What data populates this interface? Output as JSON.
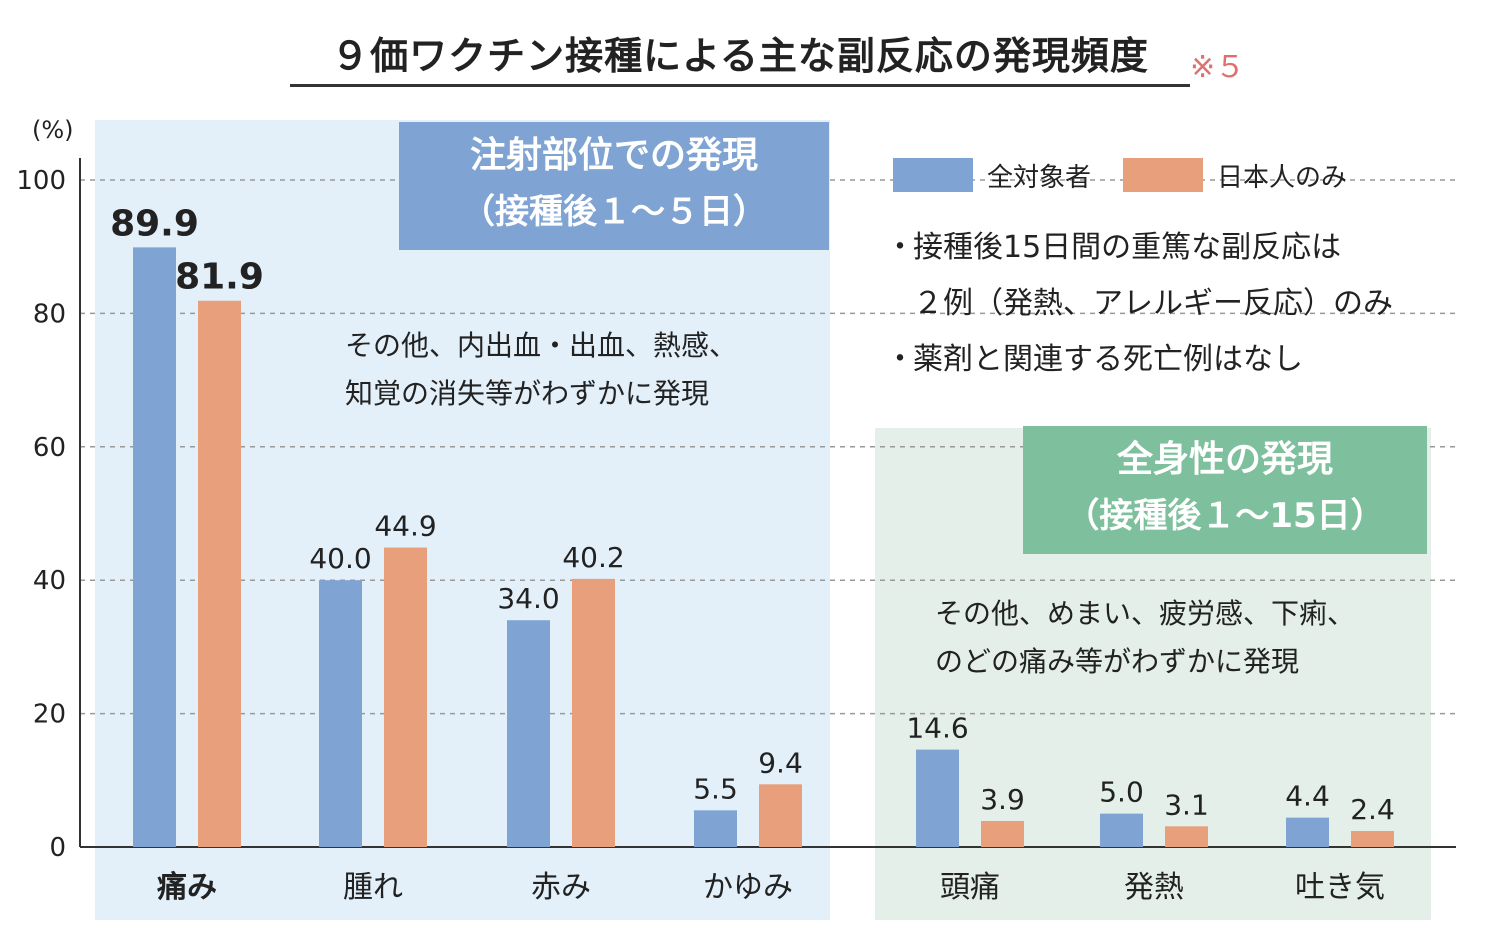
{
  "title": "９価ワクチン接種による主な副反応の発現頻度",
  "title_note": "※５",
  "chart_data": {
    "type": "bar",
    "categories": [
      "痛み",
      "腫れ",
      "赤み",
      "かゆみ",
      "頭痛",
      "発熱",
      "吐き気"
    ],
    "series": [
      {
        "name": "全対象者",
        "color": "#7fa3d3",
        "values": [
          89.9,
          40.0,
          34.0,
          5.5,
          14.6,
          5.0,
          4.4
        ],
        "labels": [
          "89.9",
          "40.0",
          "34.0",
          "5.5",
          "14.6",
          "5.0",
          "4.4"
        ]
      },
      {
        "name": "日本人のみ",
        "color": "#e89f7c",
        "values": [
          81.9,
          44.9,
          40.2,
          9.4,
          3.9,
          3.1,
          2.4
        ],
        "labels": [
          "81.9",
          "44.9",
          "40.2",
          "9.4",
          "3.9",
          "3.1",
          "2.4"
        ]
      }
    ],
    "ylim": [
      0,
      100
    ],
    "yticks": [
      0,
      20,
      40,
      60,
      80,
      100
    ],
    "y_unit": "(%)",
    "grid": "dashed",
    "legend": "top-right",
    "groups": [
      {
        "line1": "注射部位での発現",
        "line2": "（接種後１～５日）",
        "color": "#e3f0fa",
        "note": [
          "その他、内出血・出血、熱感、",
          "知覚の消失等がわずかに発現"
        ]
      },
      {
        "line1": "全身性の発現",
        "line2": "（接種後１～15日）",
        "color": "#e3efe8",
        "note": [
          "その他、めまい、疲労感、下痢、",
          "のどの痛み等がわずかに発現"
        ]
      }
    ],
    "bullets": [
      "接種後15日間の重篤な副反応は",
      "２例（発熱、アレルギー反応）のみ",
      "薬剤と関連する死亡例はなし"
    ],
    "bullet_mark": "・"
  }
}
